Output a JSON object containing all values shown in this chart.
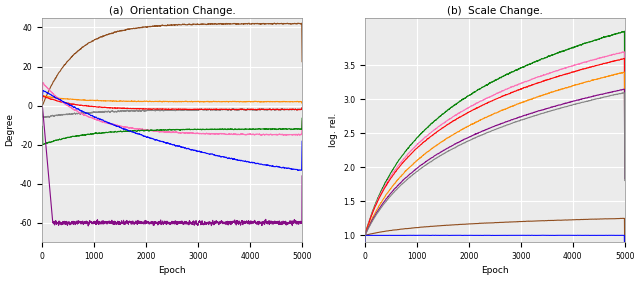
{
  "left_caption": "(a)  Orientation Change.",
  "right_caption": "(b)  Scale Change.",
  "left_xlabel": "Epoch",
  "right_xlabel": "Epoch",
  "left_ylabel": "Degree",
  "right_ylabel": "log. rel.",
  "left_xlim": [
    0,
    5000
  ],
  "left_ylim": [
    -70,
    45
  ],
  "right_xlim": [
    0,
    5000
  ],
  "right_ylim": [
    0.9,
    4.2
  ],
  "left_xticks": [
    0,
    1000,
    2000,
    3000,
    4000,
    5000
  ],
  "right_xticks": [
    0,
    1000,
    2000,
    3000,
    4000,
    5000
  ],
  "left_xtick_labels": [
    "0",
    "1000",
    "2000",
    "3000",
    "4000",
    "5000"
  ],
  "right_xtick_labels": [
    "0",
    "1000",
    "2000",
    "3000",
    "4000",
    "5000"
  ],
  "left_yticks": [
    40,
    20,
    0,
    -20,
    -40,
    -60
  ],
  "left_ytick_labels": [
    "40",
    "20",
    "0",
    "-20",
    "-40",
    "-60"
  ],
  "right_yticks": [
    1.0,
    1.5,
    2.0,
    2.5,
    3.0,
    3.5
  ],
  "right_ytick_labels": [
    "1.0",
    "1.5",
    "2.0",
    "2.5",
    "3.0",
    "3.5"
  ],
  "colors_left": [
    "#8B4513",
    "#FF8C00",
    "#808080",
    "#FF0000",
    "#FF69B4",
    "#008000",
    "#0000FF",
    "#800080"
  ],
  "colors_right": [
    "#008000",
    "#FF69B4",
    "#FF0000",
    "#FF8C00",
    "#800080",
    "#808080",
    "#8B4513",
    "#0000FF"
  ],
  "background_color": "#ebebeb",
  "grid_color": "#ffffff"
}
